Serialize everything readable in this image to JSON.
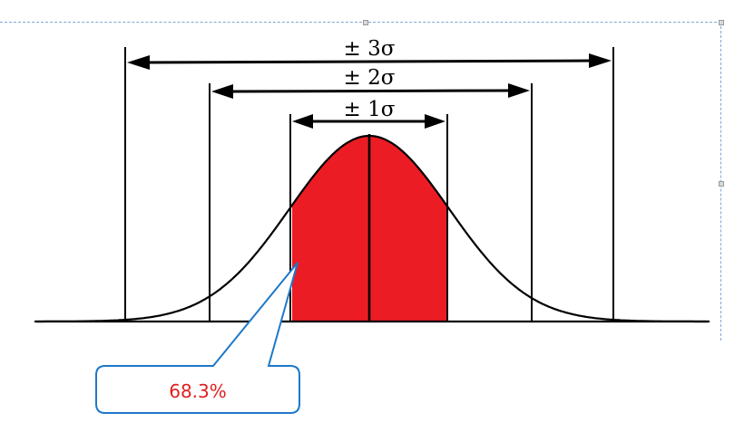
{
  "diagram": {
    "ranges": [
      {
        "sigma": 3,
        "label": "± 3σ"
      },
      {
        "sigma": 2,
        "label": "± 2σ"
      },
      {
        "sigma": 1,
        "label": "± 1σ"
      }
    ],
    "callout": {
      "text": "68.3%"
    },
    "colors": {
      "fill": "#ec1c24",
      "line": "#000000",
      "callout_border": "#1f78c8",
      "callout_text": "#e02020",
      "selection_border": "#7fa7d8"
    }
  }
}
